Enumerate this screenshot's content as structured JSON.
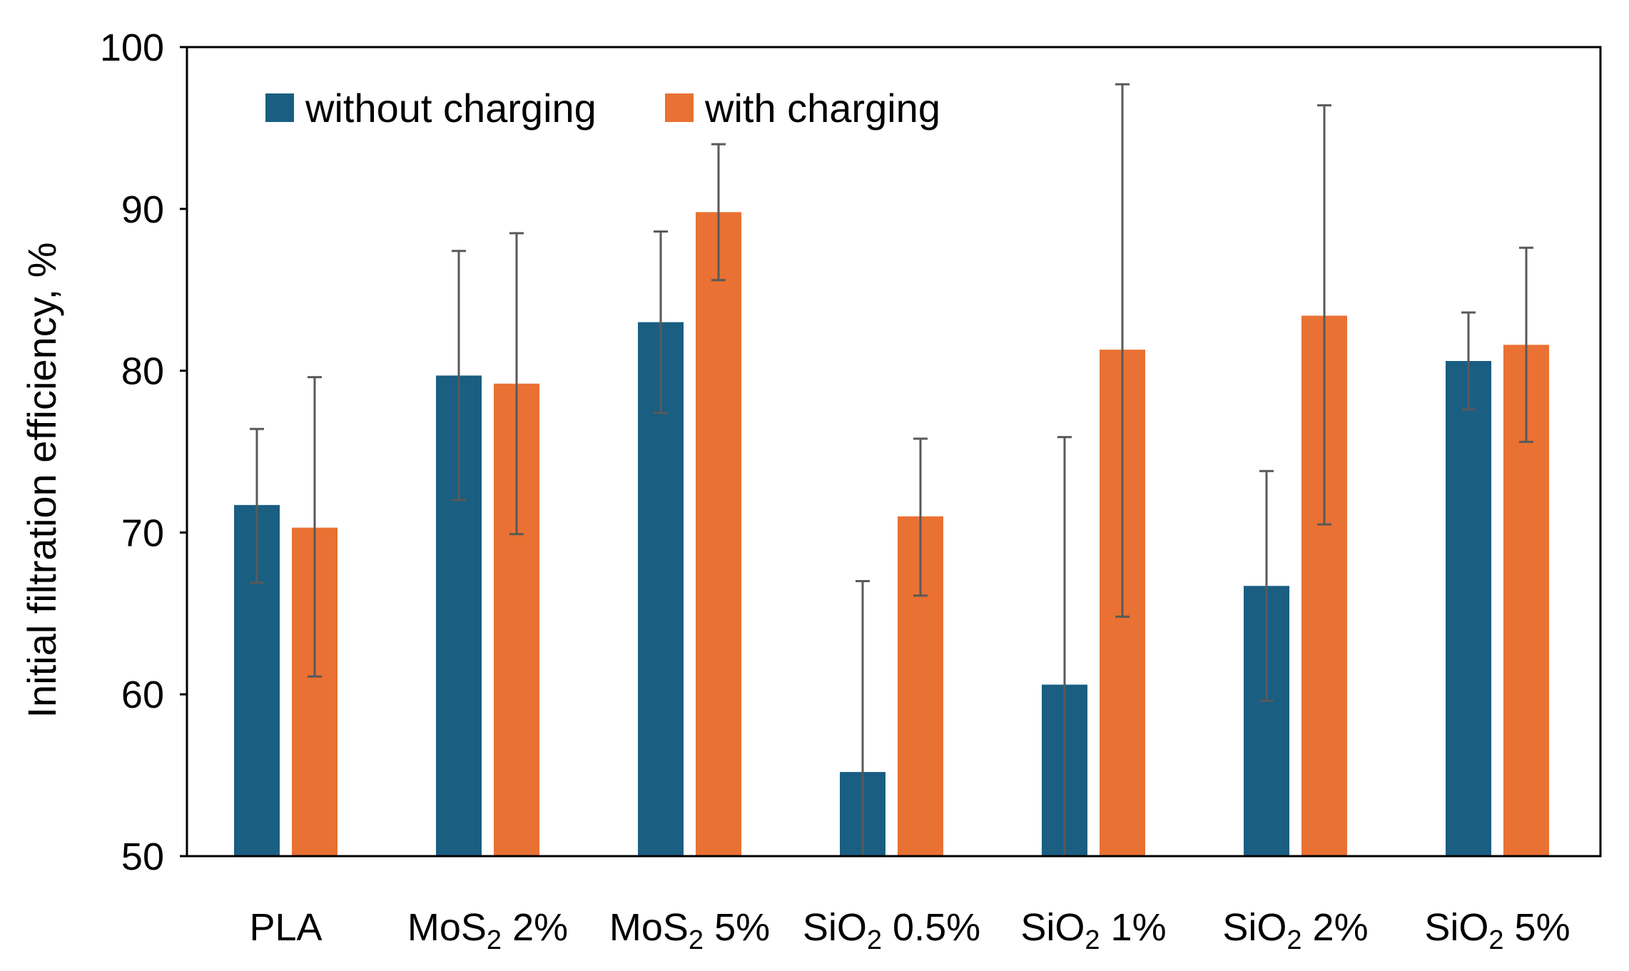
{
  "chart_data": {
    "type": "bar",
    "title": "",
    "xlabel": "",
    "ylabel": "Initial filtration efficiency, %",
    "ylim": [
      50,
      100
    ],
    "yticks": [
      50,
      60,
      70,
      80,
      90,
      100
    ],
    "grid": false,
    "legend_position": "top-left",
    "categories": [
      {
        "base": "PLA",
        "sub": "",
        "suffix": ""
      },
      {
        "base": "MoS",
        "sub": "2",
        "suffix": " 2%"
      },
      {
        "base": "MoS",
        "sub": "2",
        "suffix": " 5%"
      },
      {
        "base": "SiO",
        "sub": "2",
        "suffix": " 0.5%"
      },
      {
        "base": "SiO",
        "sub": "2",
        "suffix": " 1%"
      },
      {
        "base": "SiO",
        "sub": "2",
        "suffix": " 2%"
      },
      {
        "base": "SiO",
        "sub": "2",
        "suffix": " 5%"
      }
    ],
    "series": [
      {
        "name": "without charging",
        "color": "#1a5e82",
        "values": [
          71.7,
          79.7,
          83.0,
          55.2,
          60.6,
          66.7,
          80.6
        ],
        "error_low": [
          66.9,
          72.0,
          77.4,
          50.0,
          50.0,
          59.6,
          77.6
        ],
        "error_high": [
          76.4,
          87.4,
          88.6,
          67.0,
          75.9,
          73.8,
          83.6
        ]
      },
      {
        "name": "with charging",
        "color": "#e97133",
        "values": [
          70.3,
          79.2,
          89.8,
          71.0,
          81.3,
          83.4,
          81.6
        ],
        "error_low": [
          61.1,
          69.9,
          85.6,
          66.1,
          64.8,
          70.5,
          75.6
        ],
        "error_high": [
          79.6,
          88.5,
          94.0,
          75.8,
          97.7,
          96.4,
          87.6
        ]
      }
    ],
    "error_bar_color": "#595959",
    "axis_color": "#000000"
  }
}
